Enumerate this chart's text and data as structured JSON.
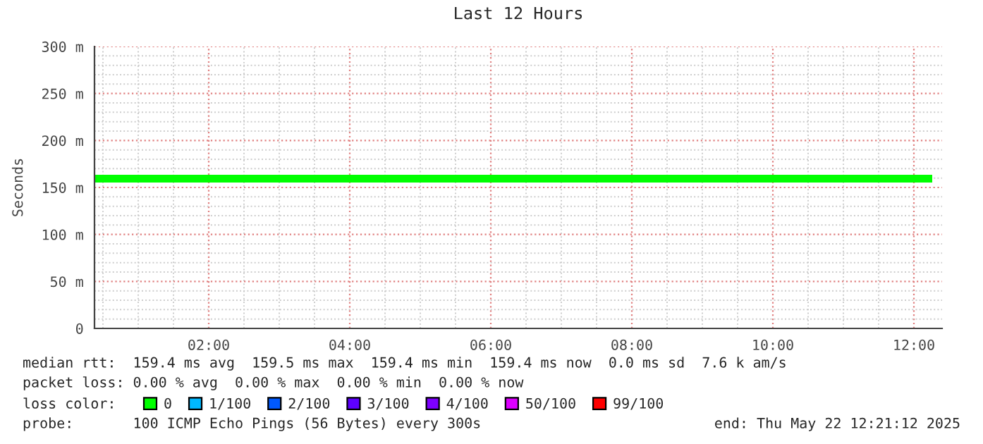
{
  "chart_data": {
    "type": "line",
    "title": "Last 12 Hours",
    "ylabel": "Seconds",
    "x": [
      0.38,
      12.26
    ],
    "series": [
      {
        "name": "0",
        "color": "#00ff00",
        "values": [
          159.4,
          159.4
        ]
      },
      {
        "name": "1/100",
        "color": "#00b8ff",
        "values": [
          null,
          null
        ]
      },
      {
        "name": "2/100",
        "color": "#0059ff",
        "values": [
          null,
          null
        ]
      },
      {
        "name": "3/100",
        "color": "#5e00ff",
        "values": [
          null,
          null
        ]
      },
      {
        "name": "4/100",
        "color": "#7e00ff",
        "values": [
          null,
          null
        ]
      },
      {
        "name": "50/100",
        "color": "#dd00ff",
        "values": [
          null,
          null
        ]
      },
      {
        "name": "99/100",
        "color": "#ff0000",
        "values": [
          null,
          null
        ]
      }
    ],
    "legend_title": "loss color:",
    "legend": "bottom",
    "grid": true,
    "marker": "none",
    "line_style": "solid",
    "xlim": [
      0.38,
      12.4
    ],
    "xticks": [
      {
        "value": 2,
        "label": "02:00"
      },
      {
        "value": 4,
        "label": "04:00"
      },
      {
        "value": 6,
        "label": "06:00"
      },
      {
        "value": 8,
        "label": "08:00"
      },
      {
        "value": 10,
        "label": "10:00"
      },
      {
        "value": 12,
        "label": "12:00"
      }
    ],
    "ylim": [
      0,
      300
    ],
    "yticks": [
      0,
      {
        "value": 50,
        "label": "50 m"
      },
      {
        "value": 100,
        "label": "100 m"
      },
      {
        "value": 150,
        "label": "150 m"
      },
      {
        "value": 200,
        "label": "200 m"
      },
      {
        "value": 250,
        "label": "250 m"
      },
      {
        "value": 300,
        "label": "300 m"
      }
    ],
    "annotations": [
      "median rtt:  159.4 ms avg  159.5 ms max  159.4 ms min  159.4 ms now  0.0 ms sd  7.6 k am/s",
      "packet loss: 0.00 % avg  0.00 % max  0.00 % min  0.00 % now",
      "probe:       100 ICMP Echo Pings (56 Bytes) every 300s",
      "end: Thu May 22 12:21:12 2025"
    ]
  }
}
